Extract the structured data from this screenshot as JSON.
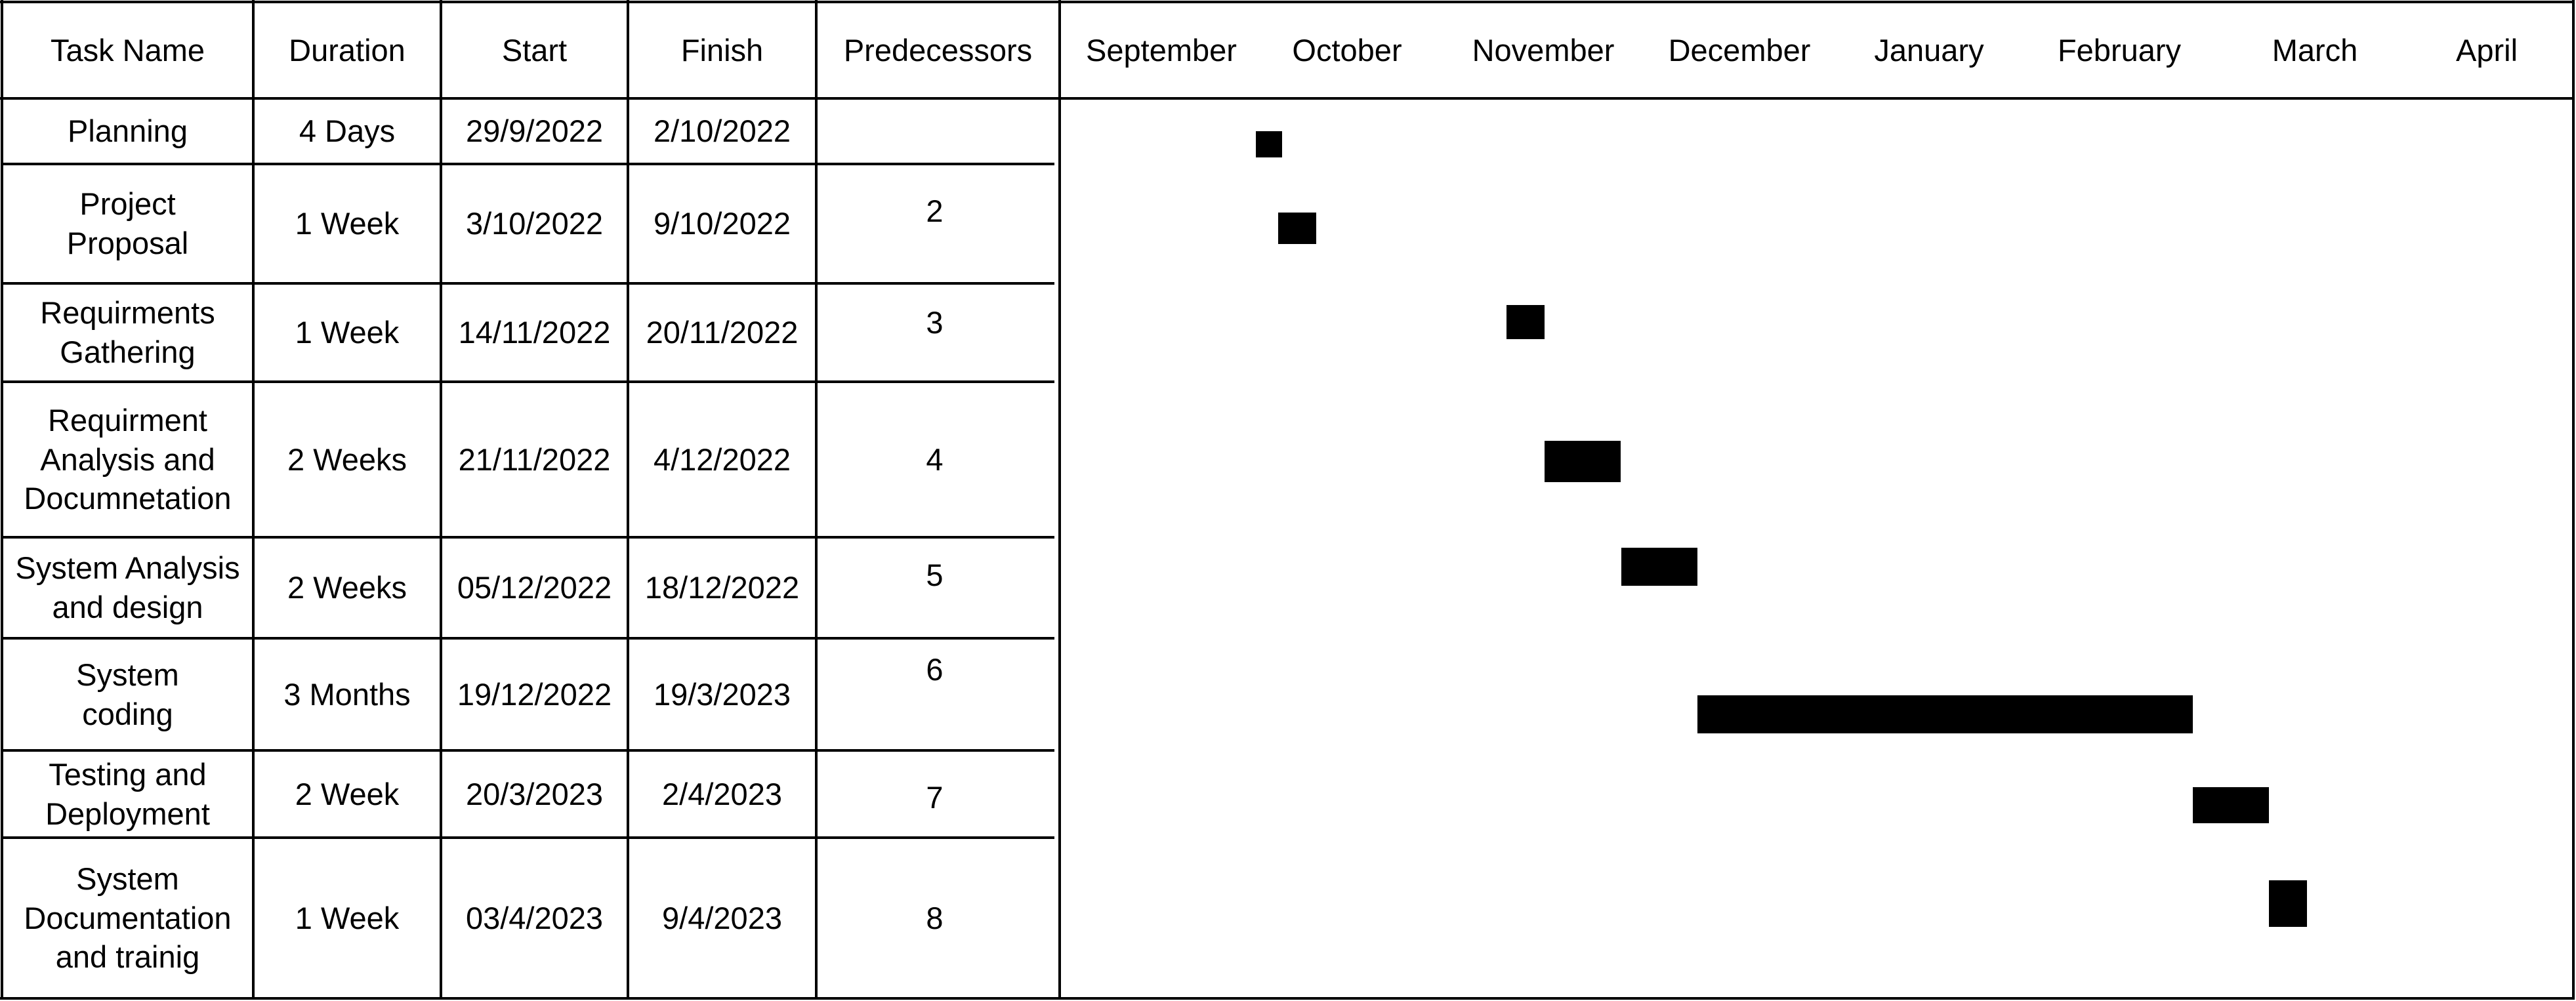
{
  "columns": [
    "Task Name",
    "Duration",
    "Start",
    "Finish",
    "Predecessors"
  ],
  "months": [
    "September",
    "October",
    "November",
    "December",
    "January",
    "February",
    "March",
    "April"
  ],
  "tasks": [
    {
      "name": "Planning",
      "duration": "4 Days",
      "start": "29/9/2022",
      "finish": "2/10/2022",
      "predecessors": ""
    },
    {
      "name": "Project\nProposal",
      "duration": "1 Week",
      "start": "3/10/2022",
      "finish": "9/10/2022",
      "predecessors": "2"
    },
    {
      "name": "Requirments\nGathering",
      "duration": "1 Week",
      "start": "14/11/2022",
      "finish": "20/11/2022",
      "predecessors": "3"
    },
    {
      "name": "Requirment\nAnalysis and\nDocumnetation",
      "duration": "2 Weeks",
      "start": "21/11/2022",
      "finish": "4/12/2022",
      "predecessors": "4"
    },
    {
      "name": "System Analysis\nand design",
      "duration": "2 Weeks",
      "start": "05/12/2022",
      "finish": "18/12/2022",
      "predecessors": "5"
    },
    {
      "name": "System\ncoding",
      "duration": "3 Months",
      "start": "19/12/2022",
      "finish": "19/3/2023",
      "predecessors": "6"
    },
    {
      "name": "Testing and\nDeployment",
      "duration": "2 Week",
      "start": "20/3/2023",
      "finish": "2/4/2023",
      "predecessors": "7"
    },
    {
      "name": "System\nDocumentation\nand trainig",
      "duration": "1 Week",
      "start": "03/4/2023",
      "finish": "9/4/2023",
      "predecessors": "8"
    }
  ],
  "chart_data": {
    "type": "gantt",
    "x_axis": "time (months)",
    "x_range": [
      "2022-09-01",
      "2023-04-30"
    ],
    "bar_color": "#000000",
    "bars": [
      {
        "task": "Planning",
        "start": "2022-09-29",
        "end": "2022-10-02"
      },
      {
        "task": "Project Proposal",
        "start": "2022-10-03",
        "end": "2022-10-09"
      },
      {
        "task": "Requirments Gathering",
        "start": "2022-11-14",
        "end": "2022-11-20"
      },
      {
        "task": "Requirment Analysis and Documnetation",
        "start": "2022-11-21",
        "end": "2022-12-04"
      },
      {
        "task": "System Analysis and design",
        "start": "2022-12-05",
        "end": "2022-12-18"
      },
      {
        "task": "System coding",
        "start": "2022-12-19",
        "end": "2023-03-19"
      },
      {
        "task": "Testing and Deployment",
        "start": "2023-03-20",
        "end": "2023-04-02"
      },
      {
        "task": "System Documentation and trainig",
        "start": "2023-04-03",
        "end": "2023-04-09"
      }
    ]
  }
}
